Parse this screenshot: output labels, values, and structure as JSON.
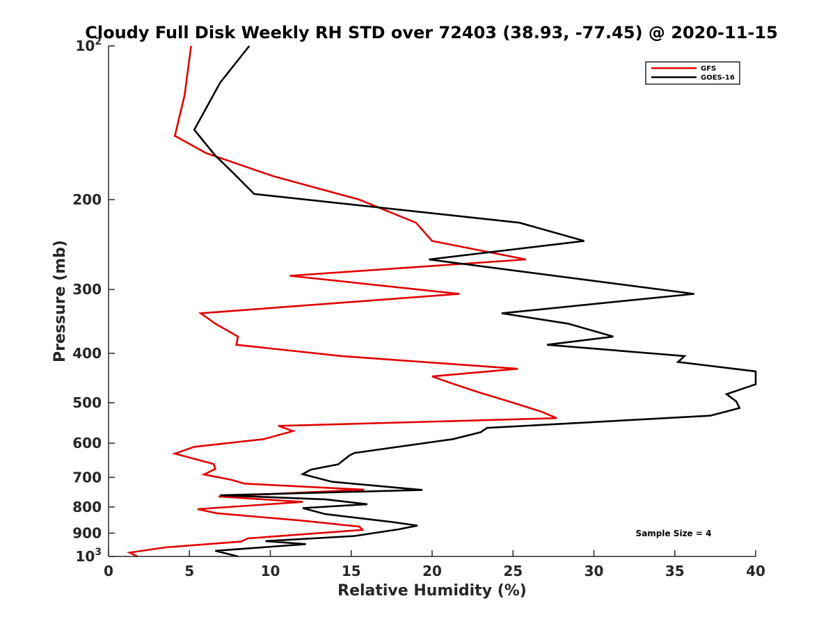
{
  "chart_data": {
    "type": "line",
    "title": "Cloudy Full Disk Weekly RH STD over 72403 (38.93, -77.45) @ 2020-11-15",
    "xlabel": "Relative Humidity (%)",
    "ylabel": "Pressure (mb)",
    "xlim": [
      0,
      40
    ],
    "ylim": [
      100,
      1000
    ],
    "y_scale": "log",
    "y_reversed": true,
    "grid": false,
    "legend_position": "top-right",
    "x_ticks": [
      "0",
      "5",
      "10",
      "15",
      "20",
      "25",
      "30",
      "35",
      "40"
    ],
    "y_ticks": [
      {
        "value": 100,
        "base": "10",
        "exp": "2"
      },
      {
        "value": 200,
        "label": "200"
      },
      {
        "value": 300,
        "label": "300"
      },
      {
        "value": 400,
        "label": "400"
      },
      {
        "value": 500,
        "label": "500"
      },
      {
        "value": 600,
        "label": "600"
      },
      {
        "value": 700,
        "label": "700"
      },
      {
        "value": 800,
        "label": "800"
      },
      {
        "value": 900,
        "label": "900"
      },
      {
        "value": 1000,
        "base": "10",
        "exp": "3"
      }
    ],
    "series": [
      {
        "name": "GFS",
        "color": "#e00000",
        "points": [
          [
            5.1,
            100
          ],
          [
            4.7,
            125
          ],
          [
            4.1,
            150
          ],
          [
            6.0,
            162
          ],
          [
            10.2,
            180
          ],
          [
            15.5,
            200
          ],
          [
            19.0,
            222
          ],
          [
            20.0,
            241
          ],
          [
            25.8,
            262
          ],
          [
            11.2,
            282
          ],
          [
            21.7,
            306
          ],
          [
            5.7,
            334
          ],
          [
            6.6,
            350
          ],
          [
            8.0,
            371
          ],
          [
            7.9,
            385
          ],
          [
            14.4,
            405
          ],
          [
            25.3,
            429
          ],
          [
            20.0,
            444
          ],
          [
            21.3,
            459
          ],
          [
            22.8,
            476
          ],
          [
            25.0,
            500
          ],
          [
            26.8,
            521
          ],
          [
            27.7,
            536
          ],
          [
            10.5,
            555
          ],
          [
            11.4,
            568
          ],
          [
            9.6,
            589
          ],
          [
            5.3,
            610
          ],
          [
            4.1,
            629
          ],
          [
            6.5,
            659
          ],
          [
            6.6,
            674
          ],
          [
            5.9,
            691
          ],
          [
            7.6,
            708
          ],
          [
            8.4,
            720
          ],
          [
            15.8,
            740
          ],
          [
            6.8,
            763
          ],
          [
            12.0,
            782
          ],
          [
            5.5,
            808
          ],
          [
            6.7,
            823
          ],
          [
            12.0,
            851
          ],
          [
            15.5,
            874
          ],
          [
            15.7,
            887
          ],
          [
            8.6,
            922
          ],
          [
            8.2,
            935
          ],
          [
            3.5,
            960
          ],
          [
            1.3,
            983
          ],
          [
            1.8,
            1000
          ]
        ]
      },
      {
        "name": "GOES-16",
        "color": "#000000",
        "points": [
          [
            8.7,
            100
          ],
          [
            6.9,
            118
          ],
          [
            5.3,
            146
          ],
          [
            6.6,
            164
          ],
          [
            7.6,
            176
          ],
          [
            9.0,
            195
          ],
          [
            25.4,
            222
          ],
          [
            29.4,
            241
          ],
          [
            19.8,
            262
          ],
          [
            36.2,
            306
          ],
          [
            24.3,
            334
          ],
          [
            28.4,
            350
          ],
          [
            31.2,
            371
          ],
          [
            27.1,
            385
          ],
          [
            35.6,
            405
          ],
          [
            35.2,
            416
          ],
          [
            40.0,
            434
          ],
          [
            40.0,
            460
          ],
          [
            38.2,
            481
          ],
          [
            38.8,
            497
          ],
          [
            39.0,
            512
          ],
          [
            37.2,
            530
          ],
          [
            23.4,
            560
          ],
          [
            23.0,
            571
          ],
          [
            21.3,
            589
          ],
          [
            15.2,
            627
          ],
          [
            14.9,
            634
          ],
          [
            14.2,
            660
          ],
          [
            12.5,
            676
          ],
          [
            12.0,
            690
          ],
          [
            13.8,
            714
          ],
          [
            19.4,
            741
          ],
          [
            6.9,
            759
          ],
          [
            13.4,
            773
          ],
          [
            16.0,
            790
          ],
          [
            12.0,
            804
          ],
          [
            13.4,
            826
          ],
          [
            17.5,
            856
          ],
          [
            19.1,
            870
          ],
          [
            17.9,
            885
          ],
          [
            15.2,
            912
          ],
          [
            9.7,
            933
          ],
          [
            12.2,
            946
          ],
          [
            6.6,
            975
          ],
          [
            7.9,
            998
          ],
          [
            8.0,
            1000
          ]
        ]
      }
    ],
    "annotation": "Sample Size = 4"
  }
}
